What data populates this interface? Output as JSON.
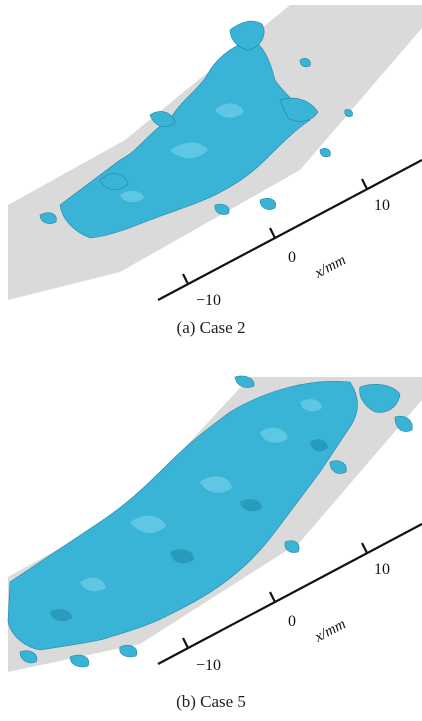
{
  "figure": {
    "panels": [
      {
        "caption": "(a) Case 2",
        "axis": {
          "unit_label": "x/mm",
          "tick_labels": [
            "−10",
            "0",
            "10"
          ]
        }
      },
      {
        "caption": "(b) Case 5",
        "axis": {
          "unit_label": "x/mm",
          "tick_labels": [
            "−10",
            "0",
            "10"
          ]
        }
      }
    ],
    "colors": {
      "wall_surface": "#d9d9d9",
      "isosurface": "#39b3d6",
      "isosurface_dark": "#1f86a8",
      "axis": "#111111"
    }
  }
}
